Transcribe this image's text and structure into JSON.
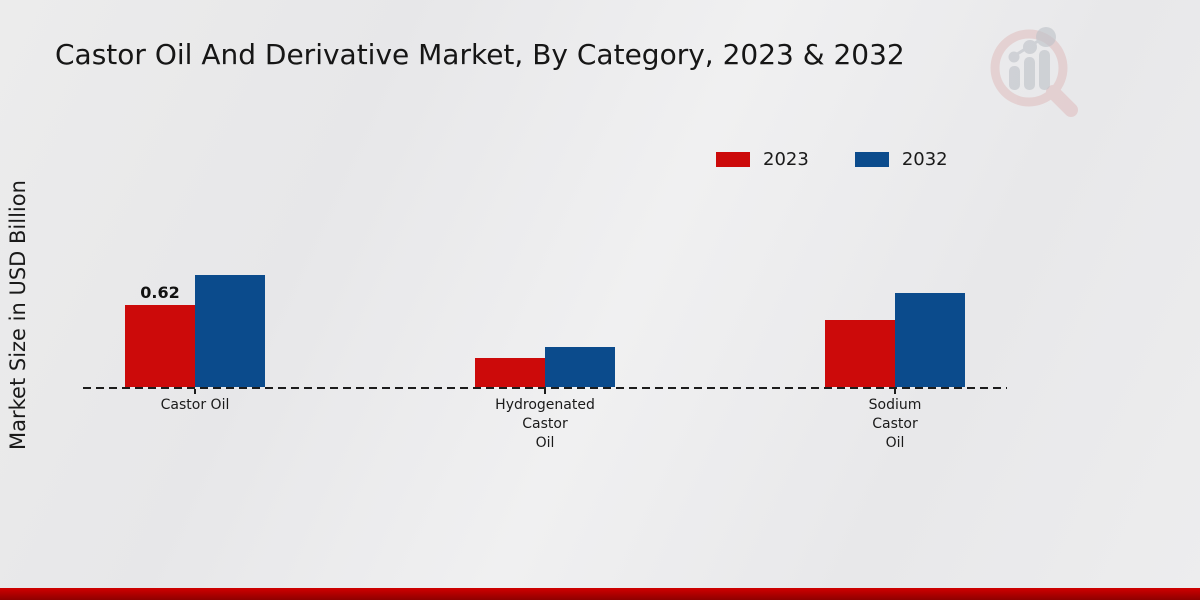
{
  "title": "Castor Oil And Derivative Market, By Category, 2023 & 2032",
  "ylabel": "Market Size in USD Billion",
  "legend": {
    "items": [
      {
        "label": "2023",
        "color": "#cc0a0a"
      },
      {
        "label": "2032",
        "color": "#0b4b8c"
      }
    ]
  },
  "colors": {
    "series_2023": "#cc0a0a",
    "series_2032": "#0b4b8c",
    "footer_band_top": "#d00000",
    "footer_band_bottom": "#8e0000",
    "baseline": "#1c1c1c",
    "watermark_pink": "#ddb3b3",
    "watermark_gray": "#bfc3c9"
  },
  "chart_data": {
    "type": "bar",
    "title": "Castor Oil And Derivative Market, By Category, 2023 & 2032",
    "xlabel": "",
    "ylabel": "Market Size in USD Billion",
    "categories": [
      "Castor Oil",
      "Hydrogenated Castor Oil",
      "Sodium Castor Oil"
    ],
    "categories_lines": [
      [
        "Castor Oil"
      ],
      [
        "Hydrogenated",
        "Castor",
        "Oil"
      ],
      [
        "Sodium",
        "Castor",
        "Oil"
      ]
    ],
    "series": [
      {
        "name": "2023",
        "color": "#cc0a0a",
        "values": [
          0.62,
          0.22,
          0.51
        ]
      },
      {
        "name": "2032",
        "color": "#0b4b8c",
        "values": [
          0.85,
          0.3,
          0.71
        ]
      }
    ],
    "annotations": [
      {
        "series_index": 0,
        "category_index": 0,
        "text": "0.62"
      }
    ],
    "ylim": [
      0,
      1.0
    ],
    "grid": false,
    "legend_position": "top-right",
    "baseline_style": "dashed"
  }
}
